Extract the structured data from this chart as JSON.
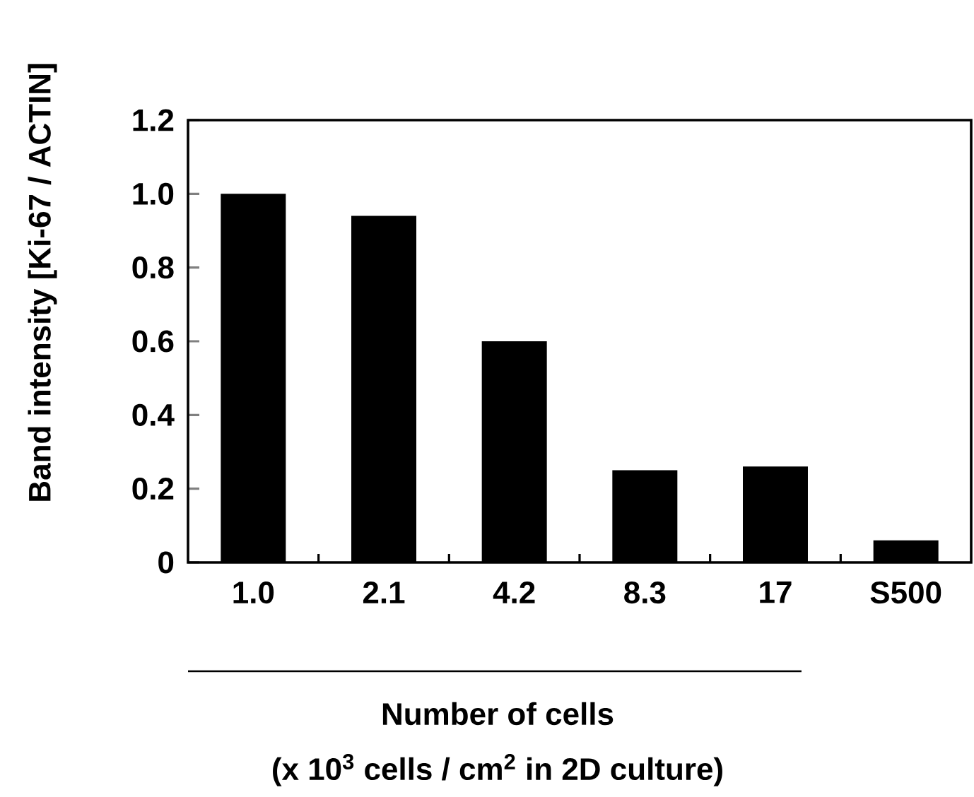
{
  "chart_data": {
    "type": "bar",
    "ylabel": "Band intensity [Ki-67 / ACTIN]",
    "xlabel": "Number of cells",
    "annotations": [
      "(x 10$^{3}$ cells / cm$^{2}$ in 2D culture)"
    ],
    "categories": [
      "1.0",
      "2.1",
      "4.2",
      "8.3",
      "17",
      "S500"
    ],
    "values": [
      1.0,
      0.94,
      0.6,
      0.25,
      0.26,
      0.06
    ],
    "color": "#000000",
    "ylim": [
      0,
      1.2
    ],
    "yticks": [
      {
        "value": 0,
        "label": "0"
      },
      {
        "value": 0.2,
        "label": "0.2"
      },
      {
        "value": 0.4,
        "label": "0.4"
      },
      {
        "value": 0.6,
        "label": "0.6"
      },
      {
        "value": 0.8,
        "label": "0.8"
      },
      {
        "value": 1.0,
        "label": "1.0"
      },
      {
        "value": 1.2,
        "label": "1.2"
      }
    ],
    "grid": false
  }
}
